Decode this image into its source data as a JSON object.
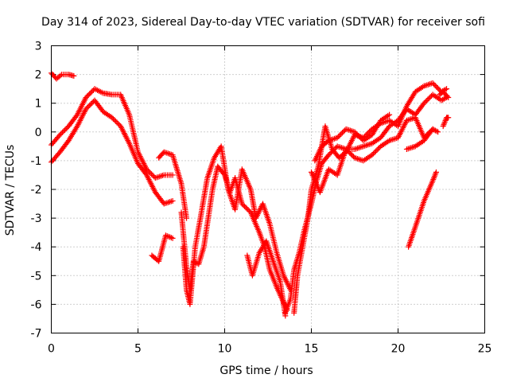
{
  "chart_data": {
    "type": "scatter",
    "title": "Day 314 of 2023, Sidereal Day-to-day VTEC variation (SDTVAR) for receiver sofi",
    "xlabel": "GPS time / hours",
    "ylabel": "SDTVAR / TECUs",
    "xlim": [
      0,
      25
    ],
    "ylim": [
      -7,
      3
    ],
    "xticks": [
      "0",
      "5",
      "10",
      "15",
      "20",
      "25"
    ],
    "yticks": [
      "-7",
      "-6",
      "-5",
      "-4",
      "-3",
      "-2",
      "-1",
      "0",
      "1",
      "2",
      "3"
    ],
    "grid": true,
    "legend": "none",
    "marker": "plus",
    "color": "#ff0000",
    "series": [
      {
        "tracks": [
          [
            [
              0,
              -1.05
            ],
            [
              0.5,
              -0.7
            ],
            [
              1,
              -0.3
            ],
            [
              1.5,
              0.2
            ],
            [
              2,
              0.8
            ],
            [
              2.5,
              1.1
            ],
            [
              3,
              0.7
            ],
            [
              3.5,
              0.5
            ],
            [
              4,
              0.2
            ],
            [
              4.5,
              -0.4
            ],
            [
              5,
              -1.1
            ],
            [
              5.5,
              -1.5
            ],
            [
              6,
              -2.1
            ],
            [
              6.5,
              -2.5
            ],
            [
              7,
              -2.4
            ]
          ],
          [
            [
              0,
              -0.45
            ],
            [
              0.5,
              -0.1
            ],
            [
              1,
              0.2
            ],
            [
              1.5,
              0.6
            ],
            [
              2,
              1.2
            ],
            [
              2.5,
              1.5
            ],
            [
              3,
              1.35
            ],
            [
              3.5,
              1.3
            ],
            [
              4,
              1.3
            ],
            [
              4.5,
              0.6
            ],
            [
              5,
              -0.7
            ],
            [
              5.5,
              -1.3
            ],
            [
              6,
              -1.6
            ],
            [
              6.5,
              -1.5
            ],
            [
              7,
              -1.5
            ]
          ],
          [
            [
              0,
              2.05
            ],
            [
              0.3,
              1.85
            ],
            [
              0.6,
              2.0
            ],
            [
              1.0,
              2.0
            ],
            [
              1.3,
              1.95
            ]
          ],
          [
            [
              5.8,
              -4.3
            ],
            [
              6.2,
              -4.5
            ],
            [
              6.6,
              -3.6
            ],
            [
              7.0,
              -3.7
            ]
          ],
          [
            [
              6.2,
              -0.9
            ],
            [
              6.5,
              -0.7
            ],
            [
              7.0,
              -0.8
            ],
            [
              7.5,
              -1.8
            ],
            [
              7.8,
              -3.0
            ]
          ],
          [
            [
              7.5,
              -2.8
            ],
            [
              7.8,
              -4.7
            ],
            [
              8.0,
              -5.5
            ],
            [
              8.2,
              -4.5
            ],
            [
              8.5,
              -4.6
            ],
            [
              8.8,
              -4.0
            ],
            [
              9.0,
              -3.2
            ],
            [
              9.3,
              -2.0
            ],
            [
              9.6,
              -1.2
            ],
            [
              10.0,
              -1.5
            ],
            [
              10.3,
              -2.1
            ],
            [
              10.6,
              -1.6
            ],
            [
              11.0,
              -2.5
            ],
            [
              11.5,
              -2.8
            ],
            [
              12.0,
              -3.5
            ],
            [
              12.3,
              -4.0
            ],
            [
              12.6,
              -4.8
            ],
            [
              13.0,
              -5.4
            ],
            [
              13.3,
              -5.8
            ],
            [
              13.6,
              -6.2
            ]
          ],
          [
            [
              7.6,
              -4.0
            ],
            [
              7.8,
              -5.5
            ],
            [
              8.0,
              -6.0
            ],
            [
              8.3,
              -4.0
            ],
            [
              8.6,
              -3.0
            ],
            [
              9.0,
              -1.6
            ],
            [
              9.4,
              -0.9
            ],
            [
              9.8,
              -0.5
            ],
            [
              10.2,
              -2.0
            ],
            [
              10.6,
              -2.7
            ],
            [
              11.0,
              -1.3
            ],
            [
              11.5,
              -2.0
            ],
            [
              11.8,
              -3.0
            ],
            [
              12.2,
              -2.5
            ],
            [
              12.6,
              -3.2
            ],
            [
              13.0,
              -4.2
            ],
            [
              13.4,
              -5.0
            ],
            [
              13.8,
              -5.5
            ]
          ],
          [
            [
              11.3,
              -4.3
            ],
            [
              11.6,
              -5.0
            ],
            [
              12.0,
              -4.2
            ],
            [
              12.4,
              -3.8
            ],
            [
              12.8,
              -4.5
            ],
            [
              13.2,
              -5.2
            ],
            [
              13.5,
              -6.4
            ]
          ],
          [
            [
              13.5,
              -6.3
            ],
            [
              13.8,
              -5.8
            ],
            [
              14.0,
              -4.8
            ],
            [
              14.3,
              -4.2
            ],
            [
              14.6,
              -3.4
            ],
            [
              15.0,
              -2.5
            ],
            [
              15.3,
              -1.7
            ],
            [
              15.6,
              -1.1
            ],
            [
              16.0,
              -0.8
            ],
            [
              16.5,
              -0.5
            ],
            [
              17.0,
              -0.6
            ],
            [
              17.5,
              -0.6
            ],
            [
              18.0,
              -0.5
            ],
            [
              18.5,
              -0.4
            ],
            [
              19.0,
              -0.2
            ],
            [
              19.5,
              0.2
            ],
            [
              20.0,
              0.4
            ],
            [
              20.5,
              0.8
            ],
            [
              21.0,
              0.6
            ],
            [
              21.5,
              1.0
            ],
            [
              22.0,
              1.3
            ],
            [
              22.5,
              1.1
            ],
            [
              22.8,
              1.2
            ]
          ],
          [
            [
              14.0,
              -6.3
            ],
            [
              14.2,
              -5.0
            ],
            [
              14.5,
              -4.0
            ],
            [
              14.8,
              -3.0
            ],
            [
              15.0,
              -2.0
            ],
            [
              15.4,
              -1.2
            ],
            [
              15.8,
              0.2
            ],
            [
              16.2,
              -0.6
            ],
            [
              16.6,
              -0.9
            ],
            [
              17.0,
              -0.7
            ],
            [
              17.5,
              -0.1
            ],
            [
              18.0,
              -0.2
            ],
            [
              18.5,
              0.1
            ],
            [
              19.0,
              0.3
            ],
            [
              19.5,
              0.4
            ],
            [
              20.0,
              0.2
            ],
            [
              20.5,
              0.9
            ],
            [
              21.0,
              1.4
            ],
            [
              21.5,
              1.6
            ],
            [
              22.0,
              1.7
            ],
            [
              22.5,
              1.4
            ],
            [
              22.8,
              1.5
            ]
          ],
          [
            [
              15.0,
              -1.4
            ],
            [
              15.5,
              -2.1
            ],
            [
              16.0,
              -1.3
            ],
            [
              16.5,
              -1.5
            ],
            [
              17.0,
              -0.6
            ],
            [
              17.5,
              -0.9
            ],
            [
              18.0,
              -1.0
            ],
            [
              18.5,
              -0.8
            ],
            [
              19.0,
              -0.5
            ],
            [
              19.5,
              -0.3
            ],
            [
              20.0,
              -0.2
            ],
            [
              20.5,
              0.4
            ],
            [
              21.0,
              0.5
            ],
            [
              21.5,
              -0.2
            ],
            [
              22.0,
              0.1
            ]
          ],
          [
            [
              15.2,
              -1.0
            ],
            [
              15.6,
              -0.5
            ],
            [
              16.0,
              -0.3
            ],
            [
              16.5,
              -0.2
            ],
            [
              17.0,
              0.1
            ],
            [
              17.5,
              0.0
            ],
            [
              18.0,
              -0.3
            ],
            [
              18.5,
              -0.1
            ],
            [
              19.0,
              0.4
            ],
            [
              19.5,
              0.6
            ]
          ],
          [
            [
              20.5,
              -0.6
            ],
            [
              21.0,
              -0.5
            ],
            [
              21.5,
              -0.3
            ],
            [
              22.0,
              0.1
            ],
            [
              22.3,
              0.0
            ]
          ],
          [
            [
              20.6,
              -4.0
            ],
            [
              21.0,
              -3.3
            ],
            [
              21.5,
              -2.4
            ],
            [
              22.0,
              -1.7
            ],
            [
              22.2,
              -1.4
            ]
          ],
          [
            [
              22.6,
              0.2
            ],
            [
              22.8,
              0.5
            ],
            [
              22.9,
              0.5
            ]
          ],
          [
            [
              22.9,
              1.2
            ],
            [
              22.6,
              1.4
            ],
            [
              22.4,
              1.3
            ]
          ]
        ]
      }
    ]
  }
}
